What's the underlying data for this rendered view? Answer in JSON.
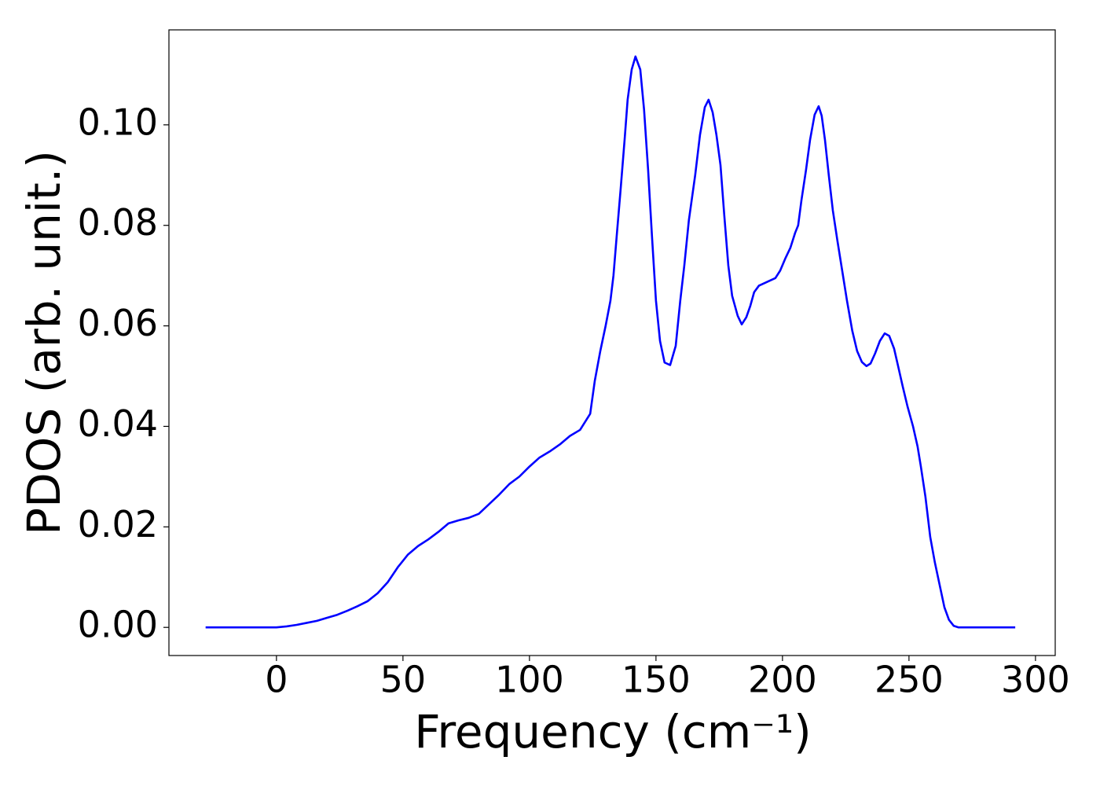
{
  "chart_data": {
    "type": "line",
    "xlabel": "Frequency (cm⁻¹)",
    "ylabel": "PDOS (arb. unit.)",
    "x": [
      -28,
      -24,
      -20,
      -16,
      -12,
      -8,
      -4,
      0,
      4,
      8,
      12,
      16,
      20,
      24,
      28,
      32,
      36,
      40,
      44,
      48,
      52,
      56,
      60,
      64,
      68,
      72,
      76,
      80,
      84,
      88,
      92,
      96,
      100,
      104,
      108,
      112,
      116,
      120,
      124,
      125.8,
      128.0,
      130.1,
      132.0,
      133.2,
      134.5,
      136.0,
      137.6,
      138.8,
      140.4,
      141.9,
      143.8,
      145.3,
      146.9,
      148.4,
      150.0,
      151.6,
      153.4,
      155.6,
      157.8,
      159.6,
      161.2,
      163.0,
      165.5,
      167.4,
      169.3,
      170.8,
      172.4,
      173.9,
      175.5,
      177.0,
      178.6,
      180.1,
      182.3,
      183.9,
      185.7,
      187.3,
      188.8,
      190.7,
      192.9,
      195.0,
      197.2,
      199.1,
      201.2,
      203.1,
      205.0,
      206.2,
      207.5,
      209.3,
      210.9,
      212.7,
      214.3,
      215.5,
      216.8,
      218.3,
      219.9,
      221.7,
      223.6,
      225.5,
      227.6,
      229.5,
      231.4,
      233.2,
      234.8,
      236.6,
      238.5,
      240.4,
      242.2,
      244.1,
      245.7,
      247.5,
      249.4,
      251.6,
      253.4,
      254.7,
      256.5,
      258.4,
      260.2,
      262.1,
      264.0,
      265.8,
      267.7,
      269.6,
      271.4,
      276,
      280,
      284,
      288,
      292
    ],
    "series": [
      {
        "name": "PDOS",
        "color": "#0000ff",
        "values": [
          0,
          0,
          0,
          0,
          0,
          0,
          0,
          0,
          0.0002,
          0.0005,
          0.0009,
          0.0013,
          0.0019,
          0.0025,
          0.0033,
          0.0042,
          0.0052,
          0.0068,
          0.009,
          0.012,
          0.0145,
          0.0162,
          0.0175,
          0.019,
          0.0207,
          0.0213,
          0.0218,
          0.0226,
          0.0245,
          0.0264,
          0.0285,
          0.03,
          0.032,
          0.0338,
          0.035,
          0.0364,
          0.0381,
          0.0393,
          0.0425,
          0.049,
          0.055,
          0.06,
          0.065,
          0.07,
          0.078,
          0.087,
          0.097,
          0.105,
          0.111,
          0.1136,
          0.111,
          0.103,
          0.091,
          0.078,
          0.065,
          0.057,
          0.0527,
          0.0522,
          0.056,
          0.065,
          0.072,
          0.081,
          0.09,
          0.098,
          0.1035,
          0.105,
          0.1025,
          0.098,
          0.092,
          0.082,
          0.072,
          0.066,
          0.062,
          0.0603,
          0.0617,
          0.064,
          0.0667,
          0.068,
          0.0685,
          0.069,
          0.0695,
          0.071,
          0.0735,
          0.0755,
          0.0785,
          0.08,
          0.085,
          0.091,
          0.097,
          0.102,
          0.1037,
          0.1018,
          0.097,
          0.09,
          0.083,
          0.077,
          0.071,
          0.065,
          0.059,
          0.055,
          0.0528,
          0.052,
          0.0525,
          0.0545,
          0.057,
          0.0585,
          0.058,
          0.0555,
          0.052,
          0.048,
          0.044,
          0.04,
          0.036,
          0.032,
          0.026,
          0.018,
          0.013,
          0.0085,
          0.004,
          0.0015,
          0.0003,
          0,
          0,
          0,
          0,
          0,
          0,
          0
        ]
      }
    ],
    "xlim": [
      -42.5,
      307.8
    ],
    "ylim": [
      -0.0056,
      0.1189
    ],
    "xticks": [
      0,
      50,
      100,
      150,
      200,
      250,
      300
    ],
    "yticks": [
      {
        "value": 0,
        "label": "0.00"
      },
      {
        "value": 0.02,
        "label": "0.02"
      },
      {
        "value": 0.04,
        "label": "0.04"
      },
      {
        "value": 0.06,
        "label": "0.06"
      },
      {
        "value": 0.08,
        "label": "0.08"
      },
      {
        "value": 0.1,
        "label": "0.10"
      }
    ],
    "grid": false
  }
}
